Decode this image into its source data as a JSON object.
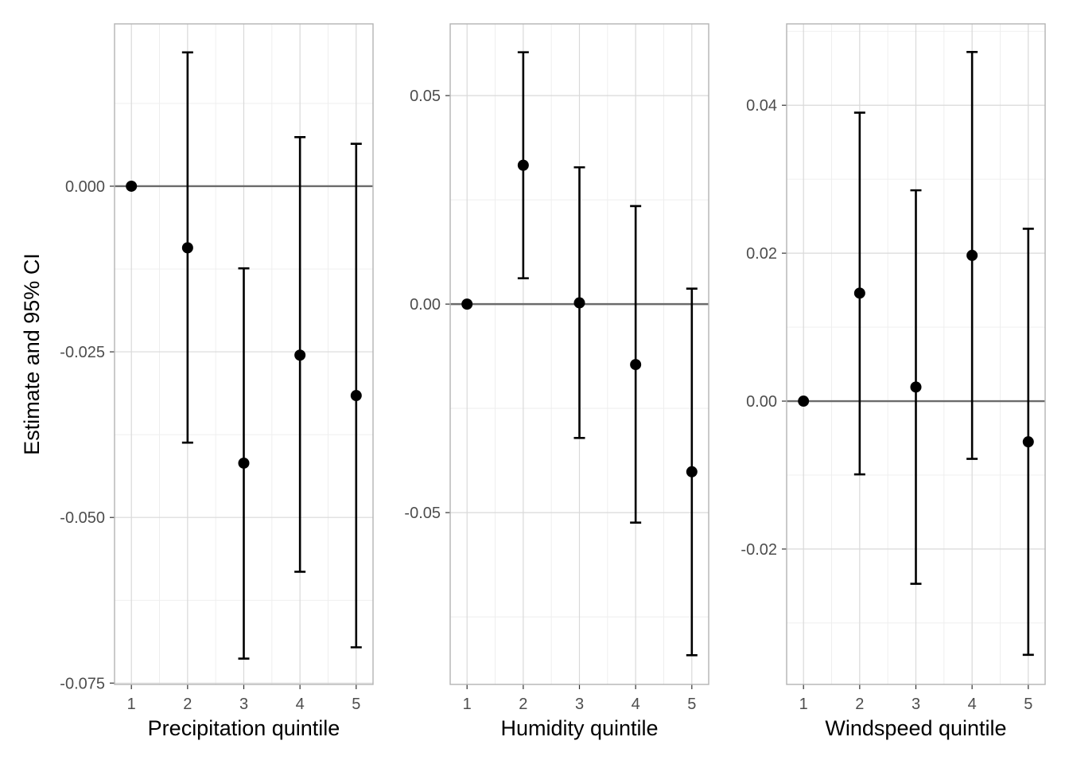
{
  "figure": {
    "ylabel": "Estimate and 95% CI"
  },
  "chart_data": [
    {
      "type": "scatter",
      "subtype": "point-errorbar",
      "xlabel": "Precipitation quintile",
      "ylabel": "Estimate and 95% CI",
      "categories": [
        "1",
        "2",
        "3",
        "4",
        "5"
      ],
      "estimate": [
        0.0,
        -0.0093,
        -0.0418,
        -0.0255,
        -0.0316
      ],
      "lower": [
        0.0,
        -0.0387,
        -0.0713,
        -0.0582,
        -0.0696
      ],
      "upper": [
        0.0,
        0.0202,
        -0.0124,
        0.0074,
        0.0064
      ],
      "ylim": [
        -0.0752,
        0.0245
      ],
      "yticks": [
        0.0,
        -0.025,
        -0.05,
        -0.075
      ],
      "ytick_labels": [
        "0.000",
        "-0.025",
        "-0.050",
        "-0.075"
      ],
      "reference_line": 0,
      "grid": true
    },
    {
      "type": "scatter",
      "subtype": "point-errorbar",
      "xlabel": "Humidity quintile",
      "categories": [
        "1",
        "2",
        "3",
        "4",
        "5"
      ],
      "estimate": [
        0.0,
        0.0333,
        0.0003,
        -0.0145,
        -0.0402
      ],
      "lower": [
        0.0,
        0.0062,
        -0.0321,
        -0.0524,
        -0.0842
      ],
      "upper": [
        0.0,
        0.0604,
        0.0328,
        0.0235,
        0.0037
      ],
      "ylim": [
        -0.0912,
        0.0672
      ],
      "yticks": [
        0.05,
        0.0,
        -0.05
      ],
      "ytick_labels": [
        "0.05",
        "0.00",
        "-0.05"
      ],
      "reference_line": 0,
      "grid": true
    },
    {
      "type": "scatter",
      "subtype": "point-errorbar",
      "xlabel": "Windspeed quintile",
      "categories": [
        "1",
        "2",
        "3",
        "4",
        "5"
      ],
      "estimate": [
        0.0,
        0.0146,
        0.0019,
        0.0197,
        -0.0055
      ],
      "lower": [
        0.0,
        -0.0099,
        -0.0247,
        -0.0078,
        -0.0343
      ],
      "upper": [
        0.0,
        0.039,
        0.0285,
        0.0472,
        0.0233
      ],
      "ylim": [
        -0.0383,
        0.051
      ],
      "yticks": [
        0.04,
        0.02,
        0.0,
        -0.02
      ],
      "ytick_labels": [
        "0.04",
        "0.02",
        "0.00",
        "-0.02"
      ],
      "reference_line": 0,
      "grid": true
    }
  ]
}
